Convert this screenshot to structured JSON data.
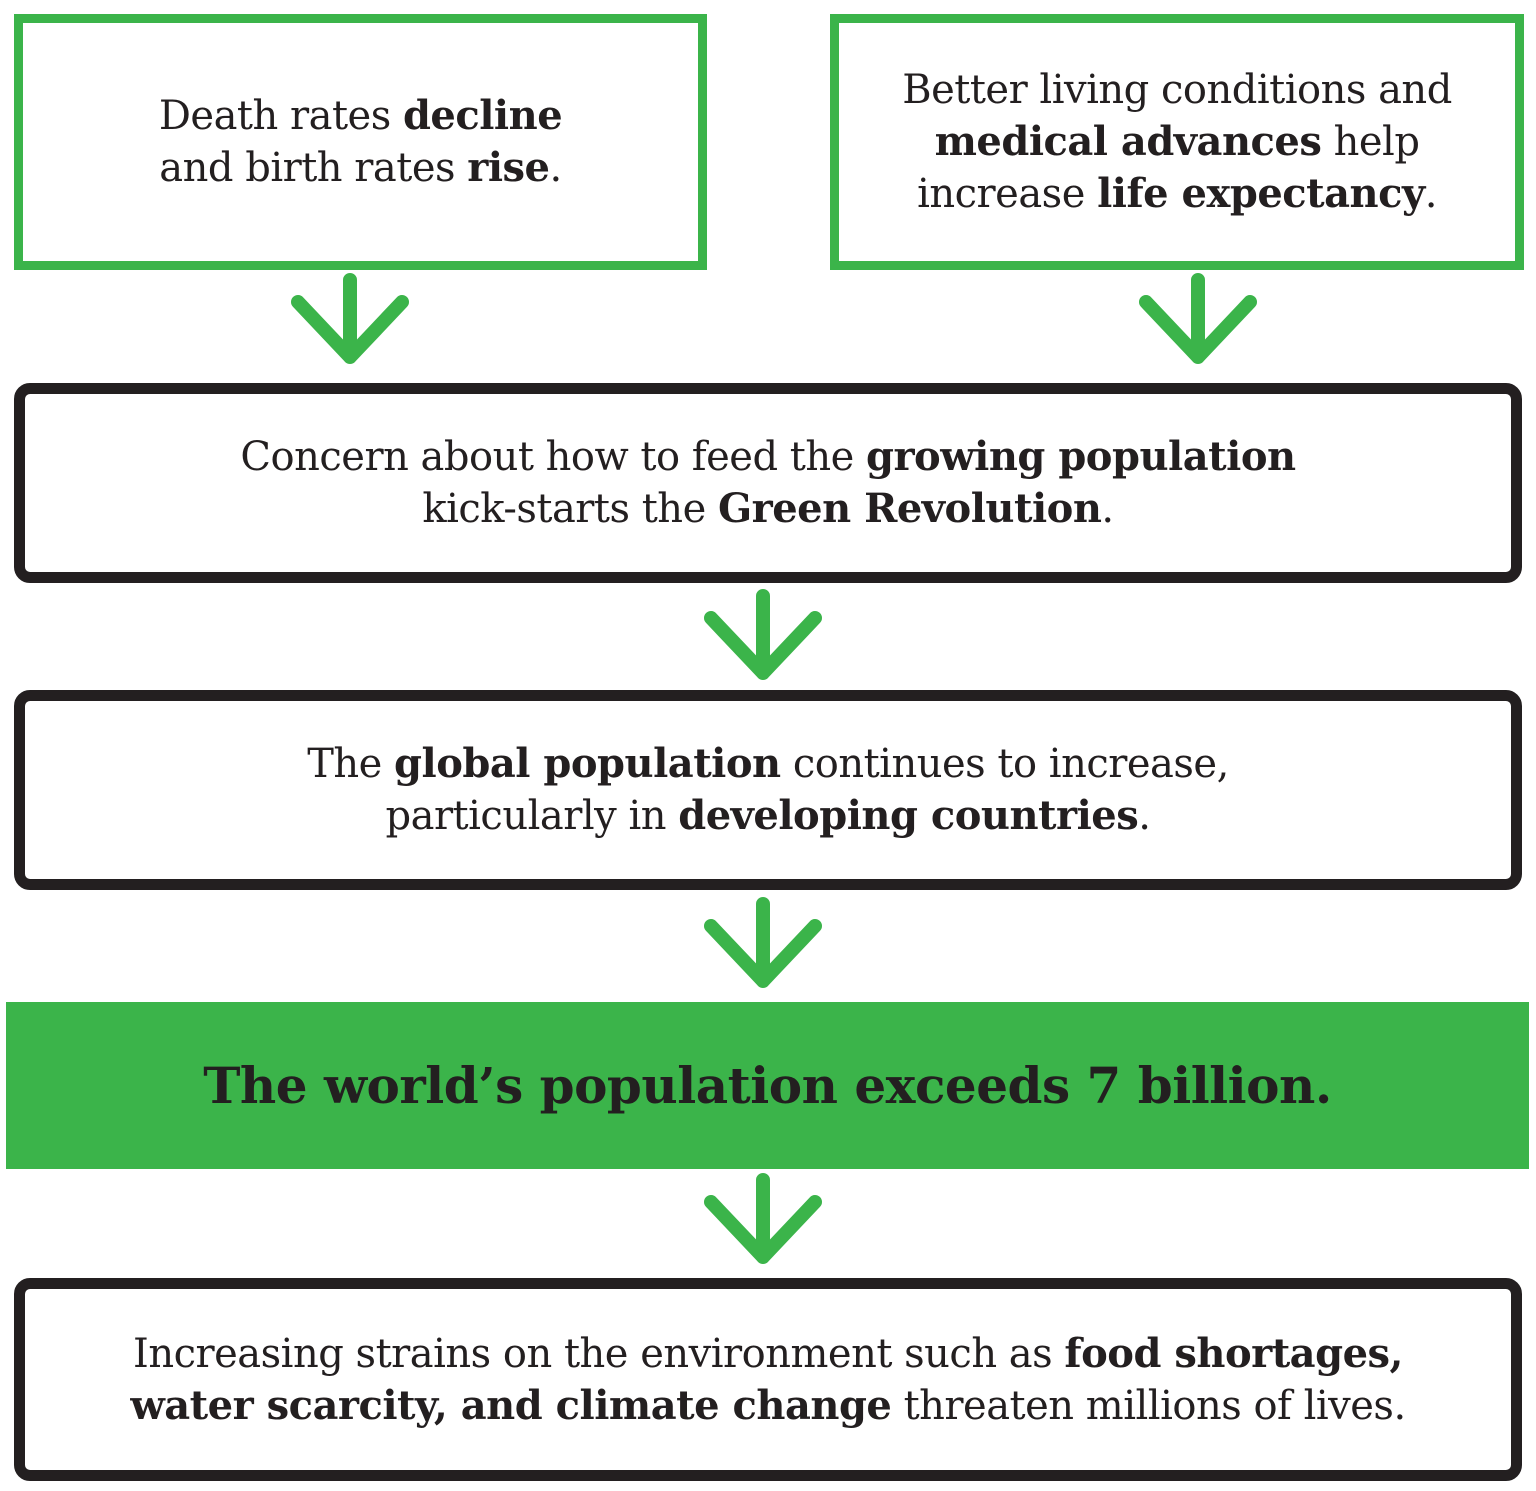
{
  "boxes": {
    "death_rates": {
      "line1": {
        "a": "Death rates ",
        "b": "decline"
      },
      "line2": {
        "a": "and birth rates ",
        "b": "rise",
        "c": "."
      }
    },
    "living_conditions": {
      "line1": {
        "a": "Better living conditions and"
      },
      "line2": {
        "b": "medical advances",
        "c": " help"
      },
      "line3": {
        "a": "increase ",
        "b": "life expectancy",
        "c": "."
      }
    },
    "green_revolution": {
      "line1": {
        "a": "Concern about how to feed the ",
        "b": "growing population"
      },
      "line2": {
        "a": "kick-starts the ",
        "b": "Green Revolution",
        "c": "."
      }
    },
    "global_population": {
      "line1": {
        "a": "The ",
        "b": "global population",
        "c": " continues to increase,"
      },
      "line2": {
        "a": "particularly in ",
        "b": "developing countries",
        "c": "."
      }
    },
    "headline": {
      "text": "The world’s population exceeds 7 billion."
    },
    "strains": {
      "line1": {
        "a": "Increasing strains on the environment such as ",
        "b": "food shortages,"
      },
      "line2": {
        "b": "water scarcity, and climate change",
        "c": " threaten millions of lives."
      }
    }
  },
  "colors": {
    "green": "#3bb44a",
    "ink": "#231f20",
    "background": "#ffffff"
  },
  "icons": [
    "down-arrow-icon"
  ]
}
